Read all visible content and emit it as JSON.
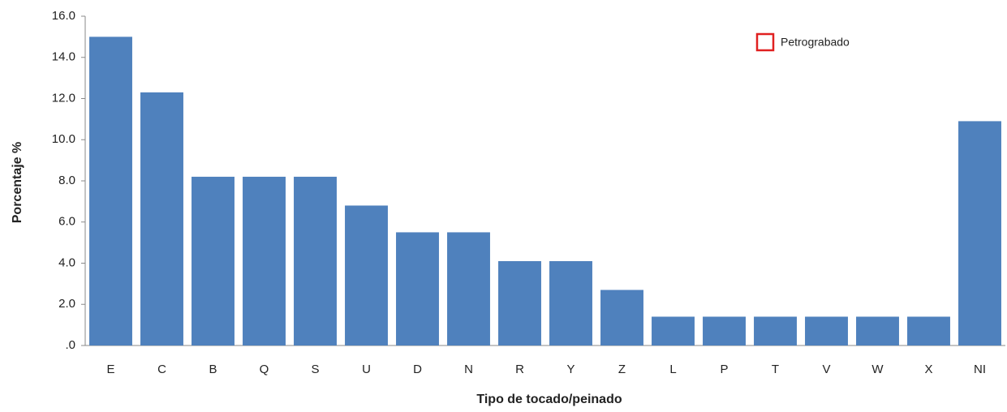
{
  "chart_data": {
    "type": "bar",
    "x_label": "Tipo de tocado/peinado",
    "y_label": "Porcentaje %",
    "categories": [
      "E",
      "C",
      "B",
      "Q",
      "S",
      "U",
      "D",
      "N",
      "R",
      "Y",
      "Z",
      "L",
      "P",
      "T",
      "V",
      "W",
      "X",
      "NI"
    ],
    "values": [
      15.0,
      12.3,
      8.2,
      8.2,
      8.2,
      6.8,
      5.5,
      5.5,
      4.1,
      4.1,
      2.7,
      1.4,
      1.4,
      1.4,
      1.4,
      1.4,
      1.4,
      10.9
    ],
    "color": "#4f81bd",
    "ylim": [
      0,
      16
    ],
    "yticks": [
      {
        "value": 0,
        "label": ".0"
      },
      {
        "value": 2,
        "label": "2.0"
      },
      {
        "value": 4,
        "label": "4.0"
      },
      {
        "value": 6,
        "label": "6.0"
      },
      {
        "value": 8,
        "label": "8.0"
      },
      {
        "value": 10,
        "label": "10.0"
      },
      {
        "value": 12,
        "label": "12.0"
      },
      {
        "value": 14,
        "label": "14.0"
      },
      {
        "value": 16,
        "label": "16.0"
      }
    ],
    "legend": {
      "label": "Petrograbado",
      "color": "#e02020",
      "position": "upper right"
    }
  }
}
